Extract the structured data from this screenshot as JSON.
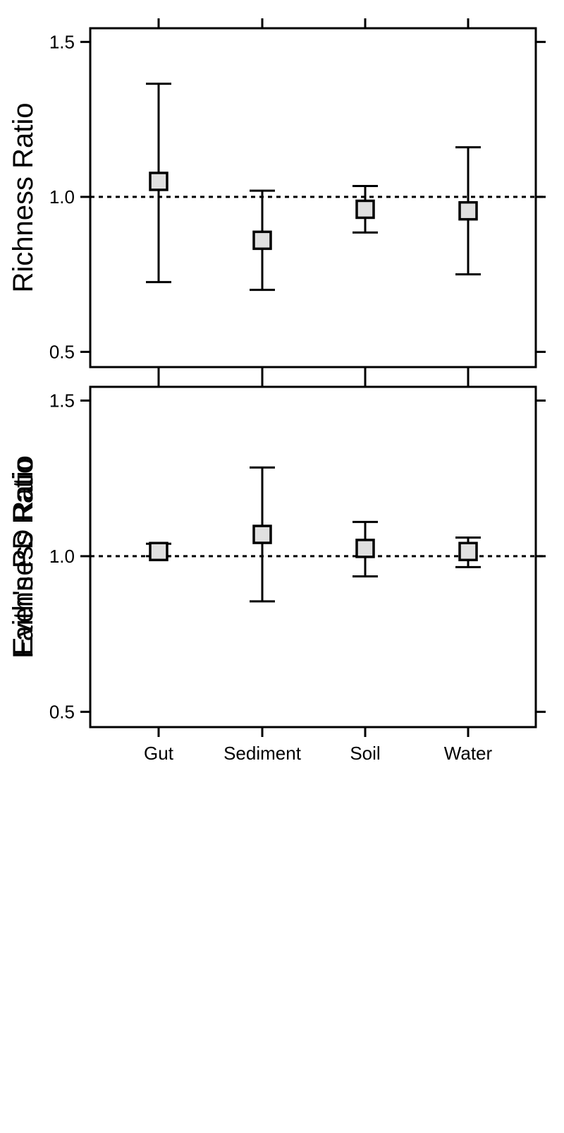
{
  "chart_data": [
    {
      "type": "errorbar",
      "ylabel": "Richness Ratio",
      "categories": [
        "Gut",
        "Sediment",
        "Soil",
        "Water"
      ],
      "series": [
        {
          "values": [
            1.05,
            0.86,
            0.96,
            0.955
          ],
          "lower": [
            0.725,
            0.7,
            0.885,
            0.75
          ],
          "upper": [
            1.365,
            1.02,
            1.035,
            1.16
          ]
        }
      ],
      "reference_line": 1.0,
      "ylim": [
        0.46,
        1.535
      ],
      "yticks": [
        "1.5",
        "1.0",
        "0.5"
      ],
      "show_x_tick_labels": false
    },
    {
      "type": "errorbar",
      "ylabel": "Evenness Ratio",
      "overlapping_ylabel": "Faith's PD Ratio",
      "categories": [
        "Gut",
        "Sediment",
        "Soil",
        "Water"
      ],
      "series": [
        {
          "values": [
            1.015,
            1.07,
            1.025,
            1.015
          ],
          "lower": [
            1.0,
            0.855,
            0.935,
            0.965
          ],
          "upper": [
            1.04,
            1.285,
            1.11,
            1.06
          ]
        }
      ],
      "reference_line": 1.0,
      "ylim": [
        0.46,
        1.535
      ],
      "yticks": [
        "1.5",
        "1.0",
        "0.5"
      ],
      "show_x_tick_labels": true
    }
  ],
  "style": {
    "marker_fill": "#e0e0e0",
    "marker_stroke": "#000000",
    "line_color": "#000000"
  }
}
